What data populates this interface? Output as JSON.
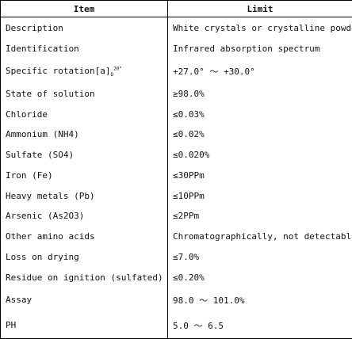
{
  "table": {
    "headers": [
      "Item",
      "Limit"
    ],
    "rows": [
      {
        "item": "Description",
        "limit": "White crystals or crystalline powder"
      },
      {
        "item": "Identification",
        "limit": "Infrared absorption spectrum"
      },
      {
        "item": "Specific rotation[a]",
        "item_sub": "D",
        "item_sup": "20°",
        "limit": "+27.0° ～ +30.0°"
      },
      {
        "item": "State of solution",
        "limit": "≥98.0%"
      },
      {
        "item": "Chloride",
        "limit": "≤0.03%"
      },
      {
        "item": "Ammonium (NH4)",
        "limit": "≤0.02%"
      },
      {
        "item": "Sulfate (SO4)",
        "limit": "≤0.020%"
      },
      {
        "item": "Iron (Fe)",
        "limit": "≤30PPm"
      },
      {
        "item": "Heavy metals (Pb)",
        "limit": "≤10PPm"
      },
      {
        "item": "Arsenic (As2O3)",
        "limit": "≤2PPm"
      },
      {
        "item": "Other amino acids",
        "limit": "Chromatographically, not detectable"
      },
      {
        "item": "Loss on drying",
        "limit": "≤7.0%"
      },
      {
        "item": "Residue on ignition (sulfated)",
        "limit": "≤0.20%"
      },
      {
        "item": "Assay",
        "limit": "98.0 ～ 101.0%"
      },
      {
        "item": "PH",
        "limit": "5.0 ～ 6.5"
      }
    ]
  }
}
